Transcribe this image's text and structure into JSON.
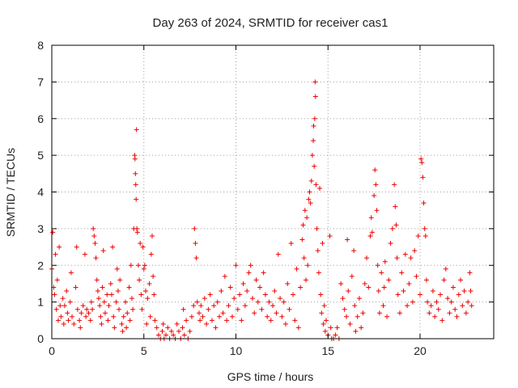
{
  "chart_data": {
    "type": "scatter",
    "title": "Day 263 of 2024, SRMTID for receiver cas1",
    "xlabel": "GPS time / hours",
    "ylabel": "SRMTID / TECUs",
    "xlim": [
      0,
      24
    ],
    "ylim": [
      0,
      8
    ],
    "grid": true,
    "marker": "+",
    "color": "#ee0000",
    "xticks": [
      0,
      5,
      10,
      15,
      20
    ],
    "xtick_labels": [
      "0",
      "5",
      "10",
      "15",
      "20"
    ],
    "yticks": [
      0,
      1,
      2,
      3,
      4,
      5,
      6,
      7,
      8
    ],
    "ytick_labels": [
      "0",
      "1",
      "2",
      "3",
      "4",
      "5",
      "6",
      "7",
      "8"
    ],
    "series": [
      {
        "name": "SRMTID",
        "points": [
          [
            0.0,
            1.9
          ],
          [
            0.05,
            2.9
          ],
          [
            0.1,
            1.4
          ],
          [
            0.15,
            1.2
          ],
          [
            0.2,
            2.3
          ],
          [
            0.25,
            0.8
          ],
          [
            0.3,
            1.6
          ],
          [
            0.35,
            0.5
          ],
          [
            0.4,
            2.5
          ],
          [
            0.45,
            0.9
          ],
          [
            0.5,
            0.6
          ],
          [
            0.6,
            1.1
          ],
          [
            0.65,
            0.4
          ],
          [
            0.7,
            0.9
          ],
          [
            0.8,
            1.3
          ],
          [
            0.85,
            0.7
          ],
          [
            0.9,
            0.5
          ],
          [
            1.0,
            1.0
          ],
          [
            1.05,
            1.8
          ],
          [
            1.1,
            0.6
          ],
          [
            1.2,
            0.4
          ],
          [
            1.3,
            1.4
          ],
          [
            1.35,
            2.5
          ],
          [
            1.4,
            0.8
          ],
          [
            1.5,
            0.5
          ],
          [
            1.55,
            0.3
          ],
          [
            1.6,
            0.7
          ],
          [
            1.7,
            0.9
          ],
          [
            1.8,
            2.3
          ],
          [
            1.85,
            0.6
          ],
          [
            1.9,
            0.8
          ],
          [
            2.0,
            0.7
          ],
          [
            2.1,
            0.5
          ],
          [
            2.15,
            1.0
          ],
          [
            2.2,
            0.8
          ],
          [
            2.25,
            3.0
          ],
          [
            2.3,
            2.8
          ],
          [
            2.35,
            2.6
          ],
          [
            2.4,
            2.2
          ],
          [
            2.45,
            1.6
          ],
          [
            2.5,
            1.3
          ],
          [
            2.55,
            1.1
          ],
          [
            2.6,
            0.9
          ],
          [
            2.65,
            0.6
          ],
          [
            2.7,
            0.4
          ],
          [
            2.75,
            1.4
          ],
          [
            2.8,
            2.4
          ],
          [
            2.85,
            1.0
          ],
          [
            2.9,
            0.7
          ],
          [
            3.0,
            1.2
          ],
          [
            3.05,
            0.5
          ],
          [
            3.1,
            0.9
          ],
          [
            3.2,
            1.5
          ],
          [
            3.25,
            1.2
          ],
          [
            3.3,
            2.5
          ],
          [
            3.35,
            0.6
          ],
          [
            3.4,
            0.3
          ],
          [
            3.5,
            1.0
          ],
          [
            3.55,
            1.9
          ],
          [
            3.6,
            1.3
          ],
          [
            3.65,
            0.8
          ],
          [
            3.7,
            1.6
          ],
          [
            3.8,
            0.4
          ],
          [
            3.85,
            0.2
          ],
          [
            3.9,
            0.6
          ],
          [
            4.0,
            1.0
          ],
          [
            4.05,
            0.3
          ],
          [
            4.1,
            0.7
          ],
          [
            4.2,
            1.4
          ],
          [
            4.25,
            0.5
          ],
          [
            4.3,
            2.0
          ],
          [
            4.35,
            1.1
          ],
          [
            4.4,
            0.8
          ],
          [
            4.45,
            3.0
          ],
          [
            4.5,
            5.0
          ],
          [
            4.52,
            4.9
          ],
          [
            4.54,
            4.5
          ],
          [
            4.56,
            4.2
          ],
          [
            4.58,
            3.8
          ],
          [
            4.6,
            5.7
          ],
          [
            4.62,
            3.0
          ],
          [
            4.65,
            2.9
          ],
          [
            4.7,
            2.0
          ],
          [
            4.75,
            1.6
          ],
          [
            4.8,
            2.6
          ],
          [
            4.85,
            1.2
          ],
          [
            4.9,
            0.8
          ],
          [
            4.95,
            2.5
          ],
          [
            5.0,
            1.9
          ],
          [
            5.05,
            2.0
          ],
          [
            5.1,
            1.3
          ],
          [
            5.15,
            0.4
          ],
          [
            5.2,
            1.1
          ],
          [
            5.3,
            1.5
          ],
          [
            5.35,
            0.6
          ],
          [
            5.4,
            2.3
          ],
          [
            5.45,
            2.8
          ],
          [
            5.5,
            1.7
          ],
          [
            5.55,
            1.2
          ],
          [
            5.6,
            0.5
          ],
          [
            5.7,
            0.3
          ],
          [
            5.8,
            0.1
          ],
          [
            5.9,
            0.0
          ],
          [
            6.0,
            0.2
          ],
          [
            6.05,
            0.4
          ],
          [
            6.1,
            0.0
          ],
          [
            6.2,
            0.1
          ],
          [
            6.3,
            0.3
          ],
          [
            6.4,
            0.0
          ],
          [
            6.5,
            0.2
          ],
          [
            6.6,
            0.1
          ],
          [
            6.7,
            0.0
          ],
          [
            6.8,
            0.4
          ],
          [
            6.9,
            0.2
          ],
          [
            7.0,
            0.0
          ],
          [
            7.1,
            0.3
          ],
          [
            7.15,
            0.8
          ],
          [
            7.2,
            0.1
          ],
          [
            7.3,
            0.5
          ],
          [
            7.4,
            0.0
          ],
          [
            7.5,
            0.2
          ],
          [
            7.6,
            0.6
          ],
          [
            7.7,
            0.9
          ],
          [
            7.75,
            3.0
          ],
          [
            7.8,
            2.6
          ],
          [
            7.85,
            2.2
          ],
          [
            7.9,
            1.0
          ],
          [
            8.0,
            0.7
          ],
          [
            8.05,
            0.5
          ],
          [
            8.1,
            0.9
          ],
          [
            8.2,
            0.6
          ],
          [
            8.3,
            1.1
          ],
          [
            8.4,
            0.4
          ],
          [
            8.5,
            0.8
          ],
          [
            8.6,
            1.2
          ],
          [
            8.7,
            0.5
          ],
          [
            8.8,
            0.9
          ],
          [
            8.9,
            0.3
          ],
          [
            9.0,
            1.0
          ],
          [
            9.1,
            0.6
          ],
          [
            9.2,
            1.3
          ],
          [
            9.3,
            0.7
          ],
          [
            9.4,
            1.7
          ],
          [
            9.5,
            0.5
          ],
          [
            9.6,
            0.9
          ],
          [
            9.7,
            1.4
          ],
          [
            9.8,
            0.6
          ],
          [
            9.9,
            1.1
          ],
          [
            10.0,
            2.0
          ],
          [
            10.1,
            0.8
          ],
          [
            10.2,
            1.2
          ],
          [
            10.3,
            0.5
          ],
          [
            10.4,
            1.5
          ],
          [
            10.5,
            0.9
          ],
          [
            10.6,
            1.3
          ],
          [
            10.7,
            1.8
          ],
          [
            10.8,
            2.0
          ],
          [
            10.9,
            1.1
          ],
          [
            11.0,
            0.7
          ],
          [
            11.1,
            1.6
          ],
          [
            11.2,
            1.0
          ],
          [
            11.3,
            1.4
          ],
          [
            11.4,
            0.8
          ],
          [
            11.5,
            1.8
          ],
          [
            11.6,
            1.2
          ],
          [
            11.7,
            0.6
          ],
          [
            11.8,
            1.0
          ],
          [
            11.9,
            0.5
          ],
          [
            12.0,
            0.9
          ],
          [
            12.1,
            1.3
          ],
          [
            12.2,
            0.7
          ],
          [
            12.3,
            2.3
          ],
          [
            12.4,
            1.1
          ],
          [
            12.5,
            0.6
          ],
          [
            12.6,
            1.0
          ],
          [
            12.7,
            0.4
          ],
          [
            12.8,
            1.5
          ],
          [
            12.9,
            0.8
          ],
          [
            13.0,
            2.6
          ],
          [
            13.1,
            1.2
          ],
          [
            13.2,
            0.5
          ],
          [
            13.3,
            1.9
          ],
          [
            13.4,
            0.3
          ],
          [
            13.5,
            1.4
          ],
          [
            13.6,
            2.7
          ],
          [
            13.65,
            3.1
          ],
          [
            13.7,
            2.2
          ],
          [
            13.75,
            3.5
          ],
          [
            13.8,
            1.6
          ],
          [
            13.85,
            3.3
          ],
          [
            13.9,
            2.0
          ],
          [
            13.95,
            3.8
          ],
          [
            14.0,
            4.0
          ],
          [
            14.05,
            3.7
          ],
          [
            14.1,
            4.3
          ],
          [
            14.15,
            5.0
          ],
          [
            14.2,
            5.4
          ],
          [
            14.22,
            5.8
          ],
          [
            14.25,
            4.7
          ],
          [
            14.28,
            6.0
          ],
          [
            14.3,
            7.0
          ],
          [
            14.32,
            6.6
          ],
          [
            14.35,
            4.2
          ],
          [
            14.4,
            3.0
          ],
          [
            14.45,
            2.4
          ],
          [
            14.5,
            1.8
          ],
          [
            14.55,
            4.1
          ],
          [
            14.6,
            1.2
          ],
          [
            14.65,
            0.7
          ],
          [
            14.7,
            2.6
          ],
          [
            14.75,
            0.4
          ],
          [
            14.8,
            0.9
          ],
          [
            14.85,
            0.2
          ],
          [
            14.9,
            0.5
          ],
          [
            15.0,
            0.1
          ],
          [
            15.1,
            2.8
          ],
          [
            15.15,
            0.3
          ],
          [
            15.2,
            0.0
          ],
          [
            15.3,
            0.0
          ],
          [
            15.4,
            0.1
          ],
          [
            15.5,
            0.3
          ],
          [
            15.6,
            0.0
          ],
          [
            15.7,
            1.5
          ],
          [
            15.8,
            1.1
          ],
          [
            15.9,
            0.8
          ],
          [
            16.0,
            0.6
          ],
          [
            16.05,
            2.7
          ],
          [
            16.1,
            1.3
          ],
          [
            16.2,
            0.4
          ],
          [
            16.3,
            1.7
          ],
          [
            16.4,
            2.4
          ],
          [
            16.45,
            0.9
          ],
          [
            16.5,
            0.2
          ],
          [
            16.6,
            0.6
          ],
          [
            16.7,
            1.1
          ],
          [
            16.8,
            0.3
          ],
          [
            16.9,
            0.7
          ],
          [
            17.0,
            1.5
          ],
          [
            17.1,
            2.2
          ],
          [
            17.2,
            1.4
          ],
          [
            17.3,
            2.8
          ],
          [
            17.35,
            3.3
          ],
          [
            17.4,
            2.9
          ],
          [
            17.5,
            3.9
          ],
          [
            17.55,
            4.6
          ],
          [
            17.6,
            4.2
          ],
          [
            17.65,
            3.5
          ],
          [
            17.7,
            2.0
          ],
          [
            17.75,
            1.3
          ],
          [
            17.8,
            0.7
          ],
          [
            17.9,
            1.8
          ],
          [
            18.0,
            0.9
          ],
          [
            18.05,
            1.4
          ],
          [
            18.1,
            2.1
          ],
          [
            18.2,
            0.6
          ],
          [
            18.3,
            1.6
          ],
          [
            18.4,
            2.6
          ],
          [
            18.5,
            3.0
          ],
          [
            18.6,
            4.2
          ],
          [
            18.65,
            3.6
          ],
          [
            18.7,
            3.1
          ],
          [
            18.75,
            2.2
          ],
          [
            18.8,
            1.2
          ],
          [
            18.9,
            0.7
          ],
          [
            19.0,
            1.8
          ],
          [
            19.1,
            1.3
          ],
          [
            19.2,
            2.3
          ],
          [
            19.3,
            0.9
          ],
          [
            19.4,
            1.5
          ],
          [
            19.5,
            2.2
          ],
          [
            19.6,
            1.0
          ],
          [
            19.7,
            2.4
          ],
          [
            19.8,
            1.7
          ],
          [
            19.9,
            2.8
          ],
          [
            20.0,
            1.2
          ],
          [
            20.05,
            4.9
          ],
          [
            20.1,
            4.8
          ],
          [
            20.15,
            4.4
          ],
          [
            20.2,
            3.7
          ],
          [
            20.25,
            3.0
          ],
          [
            20.3,
            2.8
          ],
          [
            20.35,
            1.6
          ],
          [
            20.4,
            1.0
          ],
          [
            20.5,
            0.7
          ],
          [
            20.6,
            0.9
          ],
          [
            20.7,
            1.3
          ],
          [
            20.8,
            0.6
          ],
          [
            20.9,
            1.0
          ],
          [
            21.0,
            0.8
          ],
          [
            21.1,
            1.2
          ],
          [
            21.2,
            0.5
          ],
          [
            21.3,
            1.6
          ],
          [
            21.4,
            1.9
          ],
          [
            21.5,
            1.1
          ],
          [
            21.6,
            0.7
          ],
          [
            21.7,
            1.0
          ],
          [
            21.8,
            1.4
          ],
          [
            21.9,
            0.8
          ],
          [
            22.0,
            0.6
          ],
          [
            22.1,
            1.2
          ],
          [
            22.2,
            1.6
          ],
          [
            22.3,
            0.9
          ],
          [
            22.4,
            1.3
          ],
          [
            22.5,
            0.7
          ],
          [
            22.6,
            1.0
          ],
          [
            22.7,
            1.8
          ],
          [
            22.75,
            1.3
          ],
          [
            22.8,
            0.9
          ]
        ]
      }
    ]
  }
}
